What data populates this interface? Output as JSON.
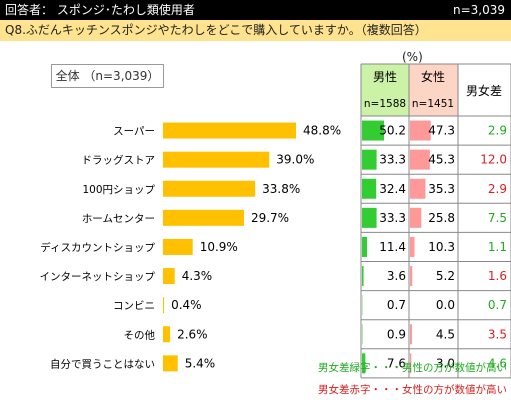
{
  "header": {
    "title": "回答者： スポンジ･たわし類使用者",
    "n": "n=3,039"
  },
  "question": "Q8.ふだんキッチンスポンジやたわしをどこで購入していますか。（複数回答）",
  "total_label": "全体 （n=3,039）",
  "unit": "(%)",
  "table_headers": {
    "male": "男性",
    "female": "女性",
    "male_n": "n=1588",
    "female_n": "n=1451",
    "diff": "男女差"
  },
  "legend": {
    "green": "男女差緑字・・・男性の方が数値が高い",
    "red": "男女差赤字・・・女性の方が数値が高い"
  },
  "colors": {
    "bar": "#ffc000",
    "male": "#33cc33",
    "female": "#ff9999",
    "male_head": "#ccf2a7",
    "female_head": "#fcd5c4",
    "green_text": "#22aa22",
    "red_text": "#d81f1f"
  },
  "chart_data": {
    "type": "bar",
    "categories": [
      "スーパー",
      "ドラッグストア",
      "100円ショップ",
      "ホームセンター",
      "ディスカウントショップ",
      "インターネットショップ",
      "コンビニ",
      "その他",
      "自分で買うことはない"
    ],
    "values": [
      48.8,
      39.0,
      33.8,
      29.7,
      10.9,
      4.3,
      0.4,
      2.6,
      5.4
    ],
    "value_labels": [
      "48.8%",
      "39.0%",
      "33.8%",
      "29.7%",
      "10.9%",
      "4.3%",
      "0.4%",
      "2.6%",
      "5.4%"
    ],
    "male": [
      50.2,
      33.3,
      32.4,
      33.3,
      11.4,
      3.6,
      0.7,
      0.9,
      7.6
    ],
    "female": [
      47.3,
      45.3,
      35.3,
      25.8,
      10.3,
      5.2,
      0.0,
      4.5,
      3.0
    ],
    "male_labels": [
      "50.2",
      "33.3",
      "32.4",
      "33.3",
      "11.4",
      "3.6",
      "0.7",
      "0.9",
      "7.6"
    ],
    "female_labels": [
      "47.3",
      "45.3",
      "35.3",
      "25.8",
      "10.3",
      "5.2",
      "0.0",
      "4.5",
      "3.0"
    ],
    "diff_labels": [
      "2.9",
      "12.0",
      "2.9",
      "7.5",
      "1.1",
      "1.6",
      "0.7",
      "3.5",
      "4.6"
    ],
    "diff_sign": [
      "green",
      "red",
      "red",
      "green",
      "green",
      "red",
      "green",
      "red",
      "green"
    ]
  }
}
